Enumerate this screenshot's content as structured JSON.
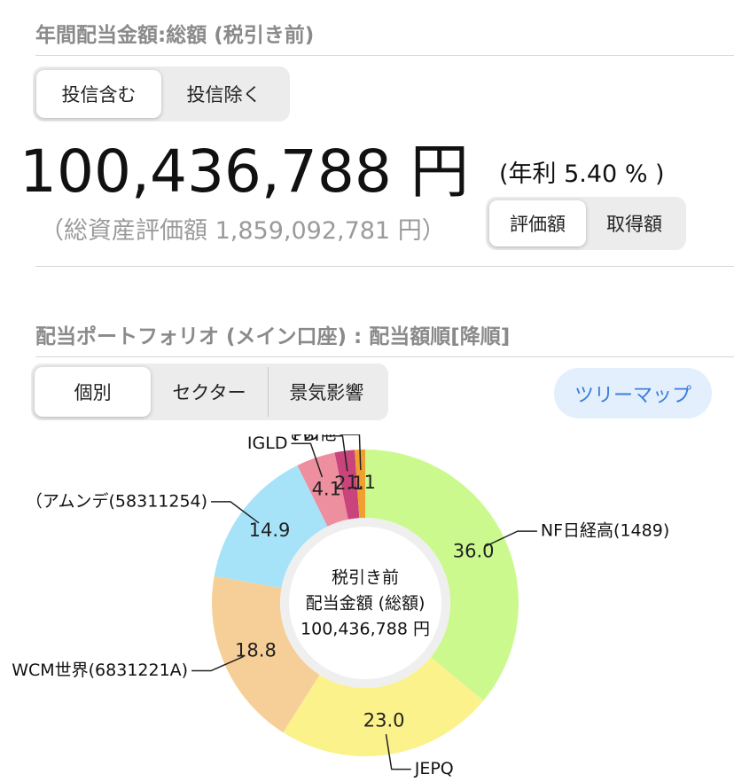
{
  "header": {
    "title": "年間配当金額:総額 (税引き前)"
  },
  "fund_toggle": {
    "options": [
      "投信含む",
      "投信除く"
    ]
  },
  "total": "100,436,788 円",
  "yield": "(年利 5.40 % )",
  "total_assets": "（総資産評価額 1,859,092,781 円）",
  "basis_toggle": {
    "options": [
      "評価額",
      "取得額"
    ]
  },
  "portfolio": {
    "title": "配当ポートフォリオ (メイン口座) : 配当額順[降順]",
    "view_toggle": [
      "個別",
      "セクター",
      "景気影響"
    ],
    "treemap_button": "ツリーマップ"
  },
  "chart_data": {
    "type": "donut",
    "center_text": [
      "税引き前",
      "配当金額 (総額)",
      "100,436,788 円"
    ],
    "categories": [
      "NF日経高(1489)",
      "JEPQ",
      "WCM世界(6831221A)",
      "（アムンデ(58311254)",
      "IGLD",
      "PBI",
      "その他"
    ],
    "values": [
      36.0,
      23.0,
      18.8,
      14.9,
      4.1,
      2.1,
      1.1
    ],
    "value_labels": [
      "36.0",
      "23.0",
      "18.8",
      "14.9",
      "4.1",
      "2.1",
      "1.1"
    ],
    "colors": [
      "#ccf98e",
      "#fbf28c",
      "#f6cf98",
      "#a6e3f8",
      "#ee8fa0",
      "#c9447a",
      "#f0a030"
    ]
  }
}
